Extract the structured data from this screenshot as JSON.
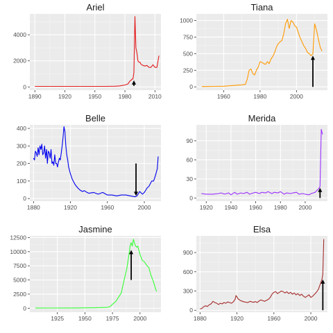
{
  "chart_data": [
    {
      "type": "line",
      "title": "Ariel",
      "color": "#e31a1c",
      "xlim": [
        1885,
        2016
      ],
      "ylim": [
        -250,
        5600
      ],
      "xticks": [
        1890,
        1920,
        1950,
        1980,
        2010
      ],
      "yticks": [
        0,
        2000,
        4000
      ],
      "x": [
        1890,
        1900,
        1910,
        1920,
        1930,
        1940,
        1950,
        1960,
        1970,
        1975,
        1980,
        1983,
        1985,
        1986,
        1987,
        1988,
        1989,
        1990,
        1991,
        1992,
        1993,
        1994,
        1995,
        1996,
        1998,
        2000,
        2002,
        2004,
        2006,
        2008,
        2010,
        2012,
        2014
      ],
      "y": [
        40,
        40,
        45,
        45,
        40,
        40,
        40,
        45,
        55,
        80,
        150,
        230,
        450,
        500,
        600,
        600,
        1100,
        5400,
        3000,
        2600,
        2000,
        1900,
        1900,
        1750,
        1650,
        1600,
        1650,
        1500,
        1500,
        1700,
        1500,
        1500,
        2400
      ],
      "annotation": {
        "type": "arrow",
        "x": 1989,
        "y_from": 80,
        "y_to": 500,
        "color": "#000000"
      }
    },
    {
      "type": "line",
      "title": "Tiana",
      "color": "#ff9900",
      "xlim": [
        1945,
        2017
      ],
      "ylim": [
        -50,
        1100
      ],
      "xticks": [
        1960,
        1980,
        2000
      ],
      "yticks": [
        0,
        250,
        500,
        750,
        1000
      ],
      "x": [
        1948,
        1950,
        1955,
        1960,
        1965,
        1970,
        1972,
        1973,
        1974,
        1975,
        1976,
        1977,
        1978,
        1979,
        1980,
        1981,
        1982,
        1983,
        1984,
        1985,
        1986,
        1987,
        1988,
        1989,
        1990,
        1991,
        1992,
        1993,
        1994,
        1995,
        1996,
        1997,
        1998,
        1999,
        2000,
        2001,
        2002,
        2003,
        2004,
        2005,
        2006,
        2007,
        2008,
        2009,
        2010,
        2011,
        2012,
        2013,
        2014
      ],
      "y": [
        5,
        5,
        8,
        10,
        20,
        30,
        40,
        120,
        250,
        270,
        200,
        180,
        250,
        300,
        380,
        370,
        350,
        340,
        380,
        350,
        420,
        460,
        520,
        600,
        650,
        680,
        700,
        800,
        950,
        1020,
        880,
        1000,
        980,
        920,
        900,
        820,
        740,
        680,
        620,
        580,
        520,
        500,
        470,
        500,
        950,
        850,
        720,
        600,
        540
      ],
      "annotation": {
        "type": "arrow",
        "x": 2009,
        "y_from": 0,
        "y_to": 470,
        "color": "#000000"
      }
    },
    {
      "type": "line",
      "title": "Belle",
      "color": "#0000ee",
      "xlim": [
        1876,
        2018
      ],
      "ylim": [
        -15,
        420
      ],
      "xticks": [
        1880,
        1920,
        1960,
        2000
      ],
      "yticks": [
        0,
        100,
        200,
        300,
        400
      ],
      "x": [
        1880,
        1881,
        1882,
        1883,
        1884,
        1885,
        1886,
        1887,
        1888,
        1889,
        1890,
        1891,
        1892,
        1893,
        1894,
        1895,
        1896,
        1897,
        1898,
        1899,
        1900,
        1901,
        1902,
        1903,
        1904,
        1905,
        1906,
        1907,
        1908,
        1909,
        1910,
        1911,
        1912,
        1913,
        1914,
        1915,
        1916,
        1917,
        1918,
        1919,
        1920,
        1922,
        1925,
        1928,
        1930,
        1933,
        1935,
        1938,
        1940,
        1945,
        1950,
        1955,
        1960,
        1965,
        1970,
        1975,
        1980,
        1985,
        1990,
        1992,
        1995,
        1998,
        2000,
        2003,
        2005,
        2008,
        2010,
        2012,
        2014,
        2015
      ],
      "y": [
        230,
        220,
        270,
        260,
        240,
        290,
        250,
        300,
        280,
        310,
        250,
        260,
        300,
        230,
        280,
        200,
        270,
        260,
        230,
        280,
        200,
        210,
        190,
        250,
        200,
        200,
        180,
        210,
        230,
        220,
        260,
        300,
        350,
        410,
        380,
        300,
        250,
        220,
        180,
        160,
        140,
        110,
        80,
        60,
        50,
        40,
        45,
        35,
        30,
        35,
        25,
        35,
        20,
        20,
        15,
        20,
        20,
        15,
        10,
        15,
        40,
        25,
        35,
        60,
        70,
        100,
        100,
        130,
        170,
        240
      ],
      "annotation": {
        "type": "arrow",
        "x": 1991,
        "y_from": 200,
        "y_to": 15,
        "color": "#000000"
      }
    },
    {
      "type": "line",
      "title": "Merida",
      "color": "#9b30ff",
      "xlim": [
        1912,
        2018
      ],
      "ylim": [
        -5,
        115
      ],
      "xticks": [
        1920,
        1940,
        1960,
        1980,
        2000
      ],
      "yticks": [
        0,
        30,
        60,
        90
      ],
      "x": [
        1916,
        1920,
        1925,
        1930,
        1932,
        1935,
        1938,
        1940,
        1943,
        1945,
        1948,
        1950,
        1953,
        1955,
        1958,
        1960,
        1963,
        1965,
        1968,
        1970,
        1973,
        1975,
        1978,
        1980,
        1983,
        1985,
        1988,
        1990,
        1993,
        1995,
        1998,
        2000,
        2003,
        2005,
        2008,
        2011,
        2012,
        2013,
        2014
      ],
      "y": [
        7,
        6,
        6,
        7,
        8,
        6,
        8,
        5,
        9,
        6,
        8,
        7,
        9,
        6,
        8,
        9,
        7,
        9,
        8,
        10,
        7,
        9,
        8,
        10,
        6,
        8,
        7,
        8,
        9,
        6,
        7,
        6,
        5,
        7,
        9,
        15,
        18,
        108,
        100
      ],
      "annotation": {
        "type": "arrow",
        "x": 2012,
        "y_from": 0,
        "y_to": 16,
        "color": "#000000"
      }
    },
    {
      "type": "line",
      "title": "Jasmine",
      "color": "#33ff33",
      "xlim": [
        1900,
        2019
      ],
      "ylim": [
        -700,
        12800
      ],
      "xticks": [
        1925,
        1950,
        1975,
        2000
      ],
      "yticks": [
        0,
        2500,
        5000,
        7500,
        10000,
        12500
      ],
      "x": [
        1905,
        1920,
        1940,
        1960,
        1970,
        1973,
        1975,
        1978,
        1980,
        1983,
        1985,
        1988,
        1990,
        1991,
        1992,
        1993,
        1994,
        1995,
        1996,
        1997,
        1998,
        1999,
        2000,
        2002,
        2004,
        2006,
        2008,
        2010,
        2012,
        2014,
        2015
      ],
      "y": [
        30,
        40,
        50,
        80,
        150,
        300,
        700,
        1200,
        1800,
        2700,
        4500,
        7000,
        9500,
        11000,
        11600,
        11000,
        12200,
        11500,
        11000,
        10800,
        11000,
        10300,
        9500,
        8500,
        8200,
        7600,
        7200,
        5800,
        4800,
        3500,
        3000
      ],
      "annotation": {
        "type": "arrow",
        "x": 1992,
        "y_from": 5000,
        "y_to": 10300,
        "color": "#000000"
      }
    },
    {
      "type": "line",
      "title": "Elsa",
      "color": "#a52a2a",
      "xlim": [
        1876,
        2018
      ],
      "ylim": [
        -30,
        1160
      ],
      "xticks": [
        1880,
        1920,
        1960,
        2000
      ],
      "yticks": [
        0,
        300,
        600,
        900
      ],
      "x": [
        1880,
        1882,
        1884,
        1886,
        1888,
        1890,
        1892,
        1894,
        1896,
        1898,
        1900,
        1902,
        1904,
        1906,
        1908,
        1910,
        1912,
        1914,
        1916,
        1918,
        1919,
        1920,
        1921,
        1922,
        1924,
        1926,
        1928,
        1930,
        1932,
        1934,
        1936,
        1938,
        1940,
        1942,
        1944,
        1946,
        1948,
        1950,
        1952,
        1954,
        1956,
        1958,
        1960,
        1962,
        1964,
        1966,
        1968,
        1970,
        1972,
        1974,
        1976,
        1978,
        1980,
        1982,
        1984,
        1986,
        1988,
        1990,
        1992,
        1994,
        1996,
        1998,
        2000,
        2002,
        2004,
        2006,
        2008,
        2010,
        2012,
        2013,
        2014
      ],
      "y": [
        20,
        30,
        55,
        70,
        60,
        85,
        100,
        140,
        120,
        110,
        90,
        110,
        100,
        120,
        110,
        130,
        120,
        110,
        130,
        170,
        230,
        210,
        180,
        170,
        150,
        140,
        130,
        125,
        120,
        140,
        130,
        125,
        135,
        120,
        145,
        160,
        150,
        140,
        155,
        170,
        200,
        250,
        280,
        290,
        260,
        280,
        300,
        290,
        270,
        290,
        260,
        280,
        250,
        270,
        240,
        260,
        230,
        250,
        220,
        200,
        220,
        240,
        200,
        220,
        250,
        280,
        320,
        400,
        480,
        560,
        1110
      ],
      "annotation": {
        "type": "arrow",
        "x": 2013,
        "y_from": 0,
        "y_to": 480,
        "color": "#000000"
      }
    }
  ]
}
